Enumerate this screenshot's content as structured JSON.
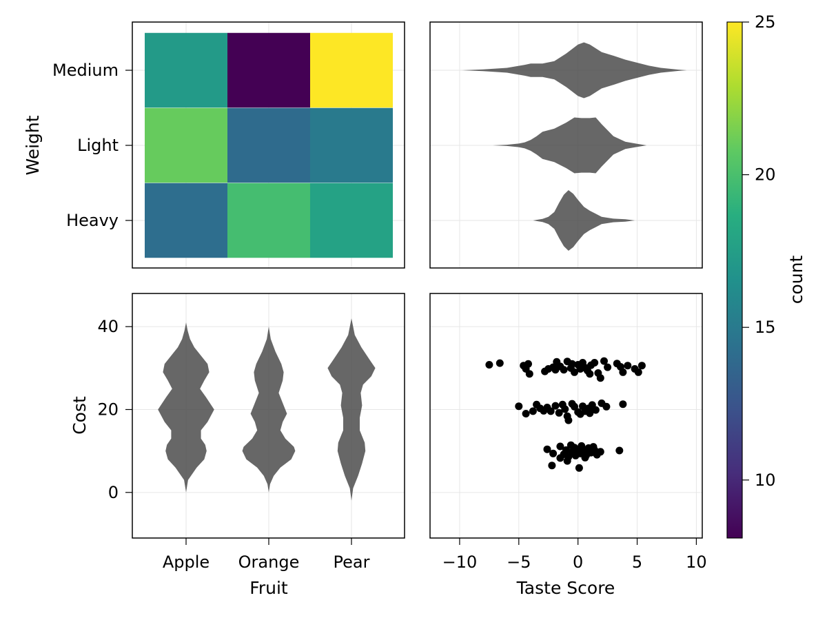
{
  "chart_data": [
    {
      "type": "heatmap",
      "x_categories": [
        "Apple",
        "Orange",
        "Pear"
      ],
      "y_categories": [
        "Heavy",
        "Light",
        "Medium"
      ],
      "ylabel": "Weight",
      "values": [
        [
          14.2,
          19.8,
          17.8
        ],
        [
          21.0,
          14.0,
          15.0
        ],
        [
          17.2,
          8.1,
          25.0
        ]
      ]
    },
    {
      "type": "violin",
      "orientation": "horizontal",
      "categories": [
        "Heavy",
        "Light",
        "Medium"
      ],
      "x_range": [
        -12.5,
        10.5
      ],
      "series": [
        {
          "category": "Heavy",
          "profile": [
            [
              -3.8,
              0.0
            ],
            [
              -3.0,
              0.05
            ],
            [
              -2.5,
              0.12
            ],
            [
              -2.0,
              0.28
            ],
            [
              -1.6,
              0.58
            ],
            [
              -1.2,
              0.85
            ],
            [
              -0.8,
              1.0
            ],
            [
              -0.4,
              0.88
            ],
            [
              0.0,
              0.68
            ],
            [
              0.5,
              0.45
            ],
            [
              1.0,
              0.32
            ],
            [
              1.5,
              0.22
            ],
            [
              2.0,
              0.12
            ],
            [
              3.0,
              0.06
            ],
            [
              4.0,
              0.04
            ],
            [
              4.8,
              0.0
            ]
          ]
        },
        {
          "category": "Light",
          "profile": [
            [
              -7.2,
              0.0
            ],
            [
              -6.0,
              0.02
            ],
            [
              -5.0,
              0.06
            ],
            [
              -4.5,
              0.1
            ],
            [
              -4.0,
              0.18
            ],
            [
              -3.5,
              0.3
            ],
            [
              -3.0,
              0.45
            ],
            [
              -2.0,
              0.55
            ],
            [
              -1.0,
              0.75
            ],
            [
              -0.3,
              0.92
            ],
            [
              0.3,
              0.9
            ],
            [
              1.0,
              0.9
            ],
            [
              1.5,
              0.92
            ],
            [
              2.0,
              0.7
            ],
            [
              3.0,
              0.3
            ],
            [
              4.0,
              0.12
            ],
            [
              5.0,
              0.05
            ],
            [
              5.8,
              0.0
            ]
          ]
        },
        {
          "category": "Medium",
          "profile": [
            [
              -9.8,
              0.0
            ],
            [
              -8.0,
              0.03
            ],
            [
              -6.0,
              0.08
            ],
            [
              -4.5,
              0.18
            ],
            [
              -4.0,
              0.22
            ],
            [
              -3.0,
              0.22
            ],
            [
              -2.0,
              0.3
            ],
            [
              -1.0,
              0.55
            ],
            [
              0.0,
              0.85
            ],
            [
              0.5,
              0.92
            ],
            [
              1.0,
              0.85
            ],
            [
              2.0,
              0.6
            ],
            [
              3.0,
              0.48
            ],
            [
              4.0,
              0.35
            ],
            [
              5.0,
              0.25
            ],
            [
              6.0,
              0.15
            ],
            [
              7.0,
              0.08
            ],
            [
              8.5,
              0.02
            ],
            [
              9.2,
              0.0
            ]
          ]
        }
      ]
    },
    {
      "type": "violin",
      "orientation": "vertical",
      "categories": [
        "Apple",
        "Orange",
        "Pear"
      ],
      "xlabel": "Fruit",
      "ylabel": "Cost",
      "ylim": [
        -11,
        48
      ],
      "yticks": [
        0,
        20,
        40
      ],
      "series": [
        {
          "category": "Apple",
          "profile": [
            [
              0,
              0.0
            ],
            [
              3,
              0.06
            ],
            [
              6,
              0.32
            ],
            [
              8,
              0.55
            ],
            [
              10,
              0.62
            ],
            [
              11.5,
              0.58
            ],
            [
              13,
              0.45
            ],
            [
              15,
              0.45
            ],
            [
              17,
              0.65
            ],
            [
              20,
              0.85
            ],
            [
              23,
              0.6
            ],
            [
              25,
              0.42
            ],
            [
              27,
              0.55
            ],
            [
              29,
              0.7
            ],
            [
              31,
              0.65
            ],
            [
              33,
              0.45
            ],
            [
              35,
              0.25
            ],
            [
              37,
              0.12
            ],
            [
              39,
              0.05
            ],
            [
              41,
              0.0
            ]
          ]
        },
        {
          "category": "Orange",
          "profile": [
            [
              0,
              0.0
            ],
            [
              2,
              0.04
            ],
            [
              4,
              0.15
            ],
            [
              6,
              0.35
            ],
            [
              8,
              0.68
            ],
            [
              10,
              0.8
            ],
            [
              11,
              0.76
            ],
            [
              13,
              0.5
            ],
            [
              15,
              0.35
            ],
            [
              17,
              0.42
            ],
            [
              19,
              0.55
            ],
            [
              21,
              0.45
            ],
            [
              24,
              0.3
            ],
            [
              27,
              0.42
            ],
            [
              29,
              0.45
            ],
            [
              31,
              0.38
            ],
            [
              34,
              0.2
            ],
            [
              37,
              0.06
            ],
            [
              40,
              0.0
            ]
          ]
        },
        {
          "category": "Pear",
          "profile": [
            [
              -2,
              0.0
            ],
            [
              1,
              0.05
            ],
            [
              4,
              0.2
            ],
            [
              7,
              0.32
            ],
            [
              10,
              0.42
            ],
            [
              12,
              0.4
            ],
            [
              15,
              0.25
            ],
            [
              18,
              0.25
            ],
            [
              21,
              0.32
            ],
            [
              24,
              0.28
            ],
            [
              26,
              0.35
            ],
            [
              28,
              0.6
            ],
            [
              30,
              0.72
            ],
            [
              32,
              0.55
            ],
            [
              35,
              0.3
            ],
            [
              38,
              0.1
            ],
            [
              42,
              0.0
            ]
          ]
        }
      ]
    },
    {
      "type": "scatter",
      "xlabel": "Taste Score",
      "xlim": [
        -12.5,
        10.5
      ],
      "ylim": [
        -11,
        48
      ],
      "xticks": [
        -10,
        -5,
        0,
        5,
        10
      ],
      "xtick_labels": [
        "−10",
        "−5",
        "0",
        "5",
        "10"
      ],
      "points": [
        [
          -7.5,
          30.8
        ],
        [
          -6.6,
          31.2
        ],
        [
          -4.6,
          30.6
        ],
        [
          -4.2,
          31.0
        ],
        [
          -4.4,
          29.8
        ],
        [
          -4.1,
          28.6
        ],
        [
          -2.8,
          29.2
        ],
        [
          -2.5,
          29.8
        ],
        [
          -2.1,
          30.2
        ],
        [
          -1.8,
          31.5
        ],
        [
          -1.5,
          30.4
        ],
        [
          -1.2,
          29.6
        ],
        [
          -0.9,
          31.6
        ],
        [
          -0.6,
          30.0
        ],
        [
          -0.3,
          29.0
        ],
        [
          0.0,
          30.8
        ],
        [
          0.2,
          29.8
        ],
        [
          0.4,
          31.3
        ],
        [
          0.6,
          30.1
        ],
        [
          0.8,
          29.4
        ],
        [
          1.1,
          30.7
        ],
        [
          1.4,
          31.3
        ],
        [
          1.7,
          28.8
        ],
        [
          1.9,
          27.6
        ],
        [
          2.2,
          31.7
        ],
        [
          2.5,
          30.2
        ],
        [
          3.3,
          31.1
        ],
        [
          3.6,
          30.3
        ],
        [
          3.8,
          29.0
        ],
        [
          4.2,
          30.6
        ],
        [
          4.8,
          29.8
        ],
        [
          5.1,
          29.0
        ],
        [
          5.4,
          30.6
        ],
        [
          -0.5,
          31.0
        ],
        [
          1.0,
          28.6
        ],
        [
          -1.9,
          29.6
        ],
        [
          -5.0,
          20.8
        ],
        [
          -3.8,
          19.6
        ],
        [
          -3.5,
          21.2
        ],
        [
          -3.2,
          20.3
        ],
        [
          -2.9,
          19.7
        ],
        [
          -2.6,
          20.5
        ],
        [
          -2.3,
          19.6
        ],
        [
          -1.9,
          20.9
        ],
        [
          -1.6,
          19.2
        ],
        [
          -1.1,
          20.1
        ],
        [
          -0.9,
          18.4
        ],
        [
          -0.8,
          17.4
        ],
        [
          -0.5,
          21.4
        ],
        [
          -0.3,
          20.7
        ],
        [
          0.0,
          19.4
        ],
        [
          0.2,
          18.9
        ],
        [
          0.4,
          20.8
        ],
        [
          0.6,
          19.6
        ],
        [
          0.9,
          20.3
        ],
        [
          1.2,
          21.1
        ],
        [
          1.5,
          19.9
        ],
        [
          2.0,
          21.5
        ],
        [
          2.4,
          20.7
        ],
        [
          3.8,
          21.3
        ],
        [
          -4.4,
          19.0
        ],
        [
          1.0,
          19.1
        ],
        [
          -1.3,
          21.2
        ],
        [
          -2.6,
          10.4
        ],
        [
          -2.1,
          9.4
        ],
        [
          -2.2,
          6.5
        ],
        [
          -1.5,
          11.1
        ],
        [
          -1.2,
          9.2
        ],
        [
          -1.0,
          10.2
        ],
        [
          -0.8,
          8.6
        ],
        [
          -0.6,
          11.4
        ],
        [
          -0.5,
          9.7
        ],
        [
          -0.3,
          10.8
        ],
        [
          -0.2,
          8.9
        ],
        [
          0.0,
          10.3
        ],
        [
          0.2,
          9.4
        ],
        [
          0.3,
          11.2
        ],
        [
          0.5,
          10.1
        ],
        [
          0.7,
          9.0
        ],
        [
          0.9,
          10.7
        ],
        [
          1.1,
          9.6
        ],
        [
          1.4,
          10.2
        ],
        [
          1.6,
          9.1
        ],
        [
          1.9,
          9.8
        ],
        [
          0.1,
          5.9
        ],
        [
          3.5,
          10.1
        ],
        [
          -0.9,
          7.6
        ],
        [
          0.6,
          8.4
        ],
        [
          -1.5,
          8.3
        ],
        [
          1.3,
          11.0
        ]
      ]
    },
    {
      "type": "colorbar",
      "label": "count",
      "range": [
        8.1,
        25
      ],
      "ticks": [
        10,
        15,
        20,
        25
      ],
      "colormap": "viridis"
    }
  ]
}
